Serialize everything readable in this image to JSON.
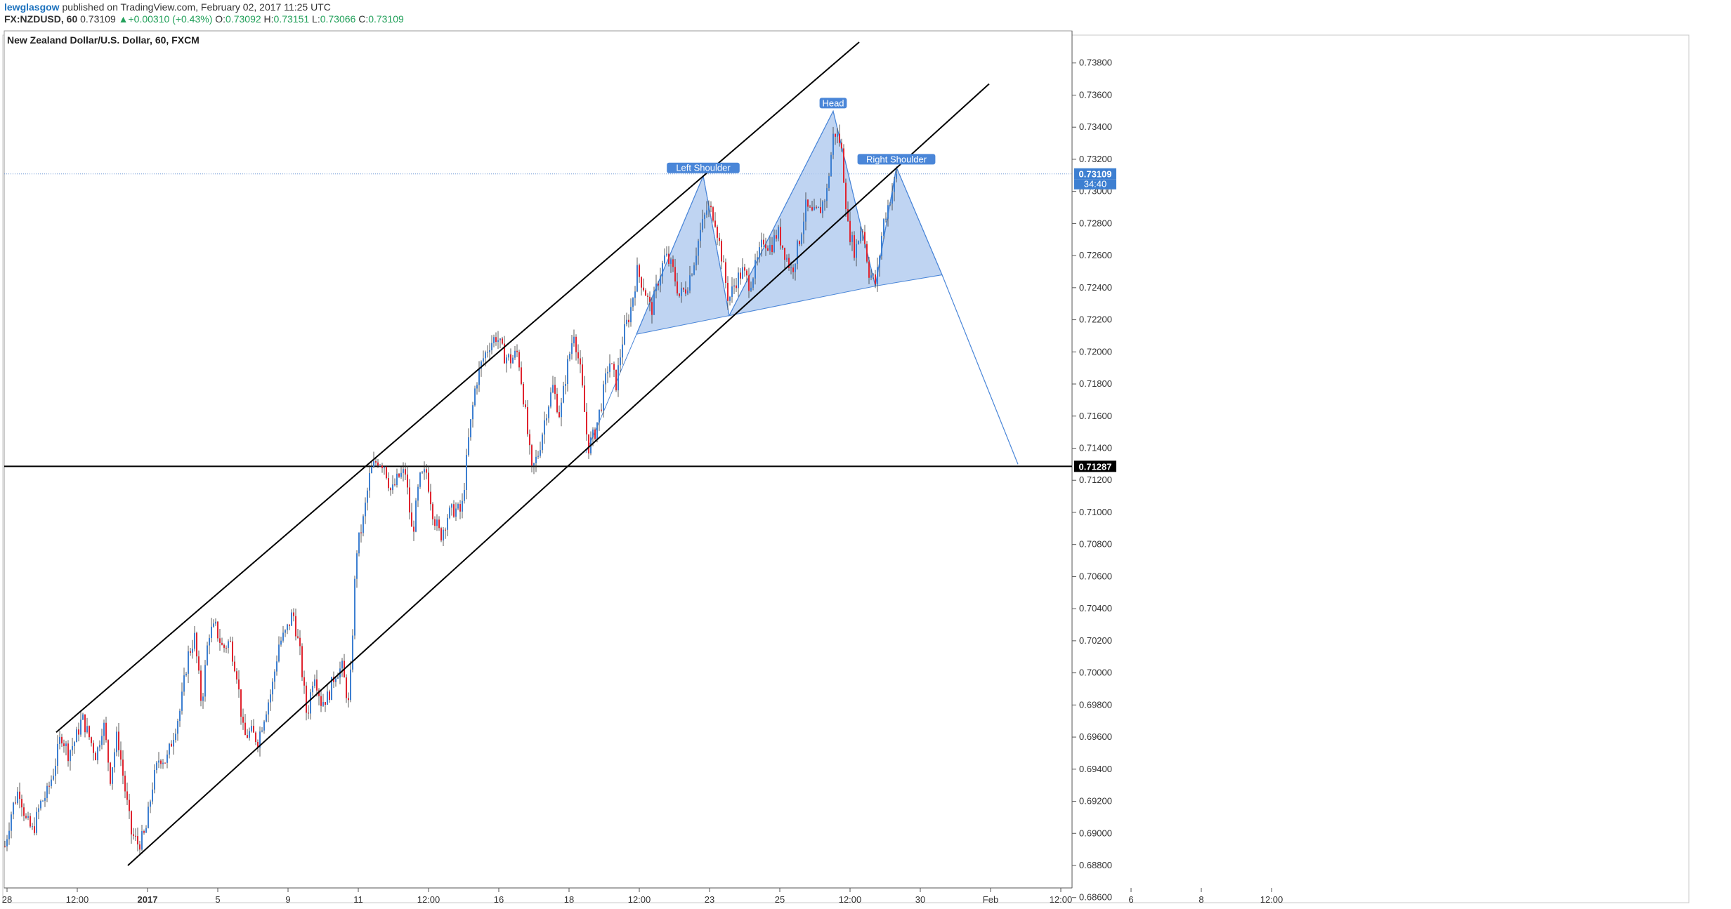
{
  "header": {
    "author": "lewglasgow",
    "published_text": " published on TradingView.com, February 02, 2017 11:25 UTC",
    "symbol": "FX:NZDUSD, 60",
    "last": "0.73109",
    "change": "+0.00310 (+0.43%)",
    "o_label": "O:",
    "o_value": "0.73092",
    "h_label": "H:",
    "h_value": "0.73151",
    "l_label": "L:",
    "l_value": "0.73066",
    "c_label": "C:",
    "c_value": "0.73109"
  },
  "colors": {
    "up": "#3d7fd1",
    "down": "#e0242f",
    "pattern_fill": "#a9c6ee",
    "pattern_stroke": "#4a86d8",
    "channel": "#000000",
    "price_line": "#6b96d6"
  },
  "chart_data": {
    "type": "candlestick",
    "title": "New Zealand Dollar/U.S. Dollar, 60, FXCM",
    "ylim": [
      0.6866,
      0.74
    ],
    "y_ticks": [
      "0.73800",
      "0.73600",
      "0.73400",
      "0.73200",
      "0.73000",
      "0.72800",
      "0.72600",
      "0.72400",
      "0.72200",
      "0.72000",
      "0.71800",
      "0.71600",
      "0.71400",
      "0.71200",
      "0.71000",
      "0.70800",
      "0.70600",
      "0.70400",
      "0.70200",
      "0.70000",
      "0.69800",
      "0.69600",
      "0.69400",
      "0.69200",
      "0.69000",
      "0.68800",
      "0.68600"
    ],
    "x_ticks": [
      "28",
      "12:00",
      "2017",
      "5",
      "9",
      "11",
      "12:00",
      "16",
      "18",
      "12:00",
      "23",
      "25",
      "12:00",
      "30",
      "Feb",
      "12:00",
      "6",
      "8",
      "12:00"
    ],
    "last_price": "0.73109",
    "countdown": "34:40",
    "horizontal_level": "0.71287",
    "price_path": [
      [
        0,
        0.6892
      ],
      [
        10,
        0.6915
      ],
      [
        20,
        0.6928
      ],
      [
        30,
        0.6908
      ],
      [
        40,
        0.6901
      ],
      [
        50,
        0.6918
      ],
      [
        60,
        0.6925
      ],
      [
        70,
        0.694
      ],
      [
        80,
        0.6962
      ],
      [
        90,
        0.695
      ],
      [
        100,
        0.6958
      ],
      [
        110,
        0.6972
      ],
      [
        120,
        0.696
      ],
      [
        130,
        0.6948
      ],
      [
        140,
        0.697
      ],
      [
        150,
        0.6935
      ],
      [
        160,
        0.6962
      ],
      [
        170,
        0.693
      ],
      [
        180,
        0.69
      ],
      [
        190,
        0.6893
      ],
      [
        200,
        0.69
      ],
      [
        210,
        0.693
      ],
      [
        220,
        0.6948
      ],
      [
        230,
        0.6945
      ],
      [
        240,
        0.6962
      ],
      [
        250,
        0.6978
      ],
      [
        260,
        0.701
      ],
      [
        270,
        0.7022
      ],
      [
        280,
        0.698
      ],
      [
        290,
        0.7025
      ],
      [
        300,
        0.7028
      ],
      [
        310,
        0.7015
      ],
      [
        320,
        0.702
      ],
      [
        330,
        0.7
      ],
      [
        340,
        0.696
      ],
      [
        350,
        0.6963
      ],
      [
        360,
        0.6958
      ],
      [
        370,
        0.6975
      ],
      [
        380,
        0.699
      ],
      [
        390,
        0.7018
      ],
      [
        400,
        0.7025
      ],
      [
        410,
        0.7038
      ],
      [
        420,
        0.7012
      ],
      [
        430,
        0.6972
      ],
      [
        440,
        0.7002
      ],
      [
        450,
        0.6982
      ],
      [
        460,
        0.6985
      ],
      [
        470,
        0.7
      ],
      [
        480,
        0.7003
      ],
      [
        490,
        0.6978
      ],
      [
        500,
        0.7075
      ],
      [
        510,
        0.7095
      ],
      [
        520,
        0.7125
      ],
      [
        530,
        0.7133
      ],
      [
        540,
        0.713
      ],
      [
        550,
        0.7112
      ],
      [
        560,
        0.7122
      ],
      [
        570,
        0.7125
      ],
      [
        580,
        0.7085
      ],
      [
        590,
        0.712
      ],
      [
        600,
        0.7125
      ],
      [
        610,
        0.7098
      ],
      [
        620,
        0.7085
      ],
      [
        630,
        0.7098
      ],
      [
        640,
        0.7102
      ],
      [
        650,
        0.71
      ],
      [
        660,
        0.7145
      ],
      [
        670,
        0.718
      ],
      [
        680,
        0.7195
      ],
      [
        690,
        0.7205
      ],
      [
        700,
        0.721
      ],
      [
        710,
        0.7198
      ],
      [
        720,
        0.7195
      ],
      [
        730,
        0.72
      ],
      [
        740,
        0.7165
      ],
      [
        750,
        0.7125
      ],
      [
        760,
        0.7138
      ],
      [
        770,
        0.7162
      ],
      [
        780,
        0.7178
      ],
      [
        790,
        0.716
      ],
      [
        800,
        0.719
      ],
      [
        810,
        0.7213
      ],
      [
        820,
        0.7185
      ],
      [
        830,
        0.714
      ],
      [
        840,
        0.715
      ],
      [
        850,
        0.717
      ],
      [
        860,
        0.7195
      ],
      [
        870,
        0.718
      ],
      [
        880,
        0.721
      ],
      [
        890,
        0.7225
      ],
      [
        900,
        0.725
      ],
      [
        910,
        0.724
      ],
      [
        920,
        0.7225
      ],
      [
        930,
        0.7245
      ],
      [
        940,
        0.726
      ],
      [
        950,
        0.7252
      ],
      [
        960,
        0.7235
      ],
      [
        970,
        0.724
      ],
      [
        980,
        0.7255
      ],
      [
        990,
        0.7275
      ],
      [
        1000,
        0.729
      ],
      [
        1010,
        0.7285
      ],
      [
        1020,
        0.726
      ],
      [
        1030,
        0.7232
      ],
      [
        1040,
        0.7244
      ],
      [
        1050,
        0.725
      ],
      [
        1060,
        0.7242
      ],
      [
        1070,
        0.7255
      ],
      [
        1080,
        0.727
      ],
      [
        1090,
        0.7265
      ],
      [
        1100,
        0.7275
      ],
      [
        1110,
        0.7262
      ],
      [
        1120,
        0.725
      ],
      [
        1130,
        0.7268
      ],
      [
        1140,
        0.729
      ],
      [
        1150,
        0.7285
      ],
      [
        1160,
        0.7288
      ],
      [
        1170,
        0.73
      ],
      [
        1180,
        0.7338
      ],
      [
        1190,
        0.733
      ],
      [
        1200,
        0.7278
      ],
      [
        1210,
        0.7262
      ],
      [
        1220,
        0.728
      ],
      [
        1230,
        0.725
      ],
      [
        1240,
        0.7242
      ],
      [
        1250,
        0.728
      ],
      [
        1260,
        0.7296
      ],
      [
        1270,
        0.7311
      ]
    ],
    "channel_lines": [
      {
        "from": [
          74,
          0.6963
        ],
        "to": [
          1217,
          0.7393
        ]
      },
      {
        "from": [
          176,
          0.688
        ],
        "to": [
          1402,
          0.7367
        ]
      }
    ],
    "head_and_shoulders": {
      "labels": [
        "Left Shoulder",
        "Head",
        "Right Shoulder"
      ],
      "points": [
        [
          900,
          0.7211
        ],
        [
          995,
          0.73096
        ],
        [
          1032,
          0.72226
        ],
        [
          1180,
          0.735
        ],
        [
          1240,
          0.7241
        ],
        [
          1270,
          0.7315
        ],
        [
          1335,
          0.7248
        ]
      ],
      "projection": {
        "from": [
          1335,
          0.7248
        ],
        "to": [
          1443,
          0.713
        ]
      }
    }
  }
}
